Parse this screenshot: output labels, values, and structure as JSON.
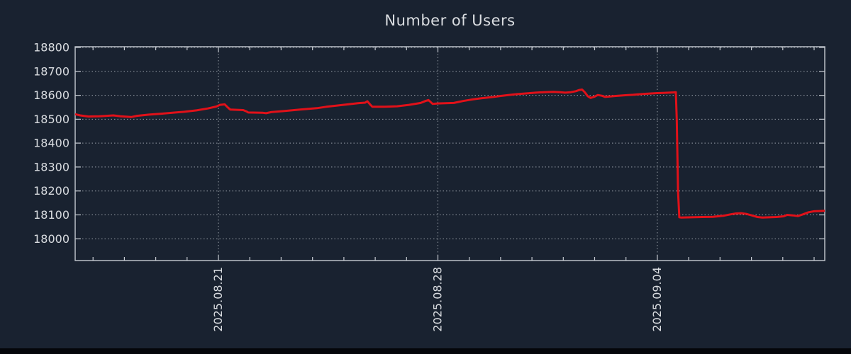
{
  "colors": {
    "background": "#192230",
    "plot_border": "#c6cbd2",
    "grid": "#99a0a9",
    "text": "#d9dce0",
    "series_red": "#e11119",
    "bottom_bar": "#04060a"
  },
  "chart_data": {
    "type": "line",
    "title": "Number of Users",
    "grid": {
      "horizontal": true,
      "vertical_on_major": true,
      "style": "dotted"
    },
    "legend": null,
    "x_axis": {
      "unit": "date",
      "range_days": [
        -4.57,
        19.34
      ],
      "minor_tick_every_days": 1,
      "major_ticks": [
        {
          "day_offset": 0,
          "label": "2025.08.21"
        },
        {
          "day_offset": 7,
          "label": "2025.08.28"
        },
        {
          "day_offset": 14,
          "label": "2025.09.04"
        }
      ]
    },
    "y_axis": {
      "range": [
        17909,
        18803
      ],
      "tick_min": 18000,
      "tick_max": 18800,
      "tick_step": 100,
      "tick_labels": [
        "18000",
        "18100",
        "18200",
        "18300",
        "18400",
        "18500",
        "18600",
        "18700",
        "18800"
      ]
    },
    "series": [
      {
        "name": "users",
        "color": "#e11119",
        "points": [
          [
            -4.57,
            18521
          ],
          [
            -4.41,
            18516
          ],
          [
            -4.14,
            18511
          ],
          [
            -3.8,
            18512
          ],
          [
            -3.57,
            18514
          ],
          [
            -3.35,
            18516
          ],
          [
            -3.12,
            18512
          ],
          [
            -2.78,
            18509
          ],
          [
            -2.6,
            18514
          ],
          [
            -2.22,
            18519
          ],
          [
            -1.83,
            18523
          ],
          [
            -1.47,
            18527
          ],
          [
            -1.09,
            18531
          ],
          [
            -0.7,
            18537
          ],
          [
            -0.34,
            18545
          ],
          [
            -0.07,
            18553
          ],
          [
            0.05,
            18560
          ],
          [
            0.2,
            18562
          ],
          [
            0.3,
            18549
          ],
          [
            0.38,
            18540
          ],
          [
            0.79,
            18538
          ],
          [
            0.9,
            18532
          ],
          [
            0.95,
            18528
          ],
          [
            1.4,
            18527
          ],
          [
            1.52,
            18525
          ],
          [
            1.7,
            18530
          ],
          [
            2.08,
            18534
          ],
          [
            2.6,
            18540
          ],
          [
            3.14,
            18546
          ],
          [
            3.44,
            18552
          ],
          [
            3.78,
            18557
          ],
          [
            4.18,
            18563
          ],
          [
            4.45,
            18567
          ],
          [
            4.68,
            18569
          ],
          [
            4.75,
            18575
          ],
          [
            4.85,
            18560
          ],
          [
            4.91,
            18552
          ],
          [
            5.3,
            18552
          ],
          [
            5.7,
            18554
          ],
          [
            6.08,
            18560
          ],
          [
            6.45,
            18568
          ],
          [
            6.6,
            18576
          ],
          [
            6.7,
            18580
          ],
          [
            6.83,
            18564
          ],
          [
            6.99,
            18566
          ],
          [
            7.51,
            18568
          ],
          [
            7.8,
            18576
          ],
          [
            8.12,
            18583
          ],
          [
            8.41,
            18588
          ],
          [
            8.71,
            18592
          ],
          [
            8.98,
            18597
          ],
          [
            9.25,
            18601
          ],
          [
            9.54,
            18605
          ],
          [
            9.84,
            18608
          ],
          [
            10.11,
            18611
          ],
          [
            10.38,
            18613
          ],
          [
            10.68,
            18614
          ],
          [
            10.9,
            18613
          ],
          [
            11.06,
            18611
          ],
          [
            11.24,
            18613
          ],
          [
            11.4,
            18617
          ],
          [
            11.51,
            18622
          ],
          [
            11.6,
            18624
          ],
          [
            11.69,
            18612
          ],
          [
            11.78,
            18596
          ],
          [
            11.87,
            18589
          ],
          [
            11.99,
            18594
          ],
          [
            12.1,
            18601
          ],
          [
            12.24,
            18598
          ],
          [
            12.33,
            18593
          ],
          [
            12.49,
            18595
          ],
          [
            12.64,
            18597
          ],
          [
            12.94,
            18600
          ],
          [
            13.23,
            18602
          ],
          [
            13.39,
            18604
          ],
          [
            13.62,
            18606
          ],
          [
            14.0,
            18609
          ],
          [
            14.18,
            18610
          ],
          [
            14.36,
            18611
          ],
          [
            14.52,
            18612
          ],
          [
            14.59,
            18613
          ],
          [
            14.62,
            18500
          ],
          [
            14.66,
            18200
          ],
          [
            14.7,
            18090
          ],
          [
            14.75,
            18089
          ],
          [
            15.09,
            18090
          ],
          [
            15.43,
            18091
          ],
          [
            15.77,
            18092
          ],
          [
            16.1,
            18096
          ],
          [
            16.33,
            18102
          ],
          [
            16.51,
            18106
          ],
          [
            16.67,
            18107
          ],
          [
            16.83,
            18104
          ],
          [
            17.01,
            18098
          ],
          [
            17.19,
            18091
          ],
          [
            17.35,
            18089
          ],
          [
            17.57,
            18090
          ],
          [
            17.8,
            18091
          ],
          [
            18.03,
            18094
          ],
          [
            18.14,
            18100
          ],
          [
            18.32,
            18098
          ],
          [
            18.48,
            18095
          ],
          [
            18.64,
            18102
          ],
          [
            18.82,
            18111
          ],
          [
            19.0,
            18115
          ],
          [
            19.16,
            18116
          ],
          [
            19.34,
            18117
          ]
        ]
      }
    ]
  }
}
